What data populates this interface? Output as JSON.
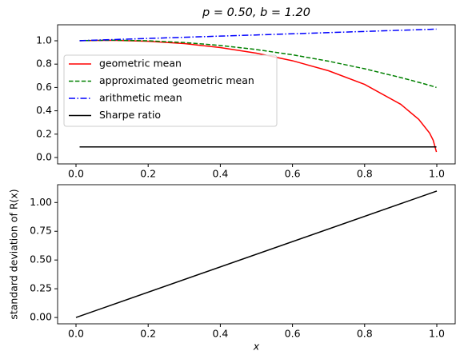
{
  "chart_data": [
    {
      "type": "line",
      "title": "p = 0.50, b = 1.20",
      "legend": "upper left",
      "x": [
        0.01,
        0.1,
        0.2,
        0.3,
        0.4,
        0.5,
        0.6,
        0.7,
        0.8,
        0.9,
        0.95,
        0.98,
        0.99,
        0.999
      ],
      "series": [
        {
          "name": "geometric mean",
          "color": "#ff0000",
          "linestyle": "solid",
          "values": [
            1.0009,
            1.004,
            0.996,
            0.976,
            0.942,
            0.894,
            0.829,
            0.743,
            0.626,
            0.456,
            0.327,
            0.209,
            0.148,
            0.047
          ]
        },
        {
          "name": "approximated geometric mean",
          "color": "#008000",
          "linestyle": "dashed",
          "values": [
            1.001,
            1.005,
            1.0,
            0.985,
            0.96,
            0.925,
            0.88,
            0.825,
            0.76,
            0.685,
            0.644,
            0.618,
            0.609,
            0.6
          ]
        },
        {
          "name": "arithmetic mean",
          "color": "#0000ff",
          "linestyle": "dashdot",
          "values": [
            1.001,
            1.01,
            1.02,
            1.03,
            1.04,
            1.05,
            1.06,
            1.07,
            1.08,
            1.09,
            1.095,
            1.098,
            1.099,
            1.0999
          ]
        },
        {
          "name": "Sharpe ratio",
          "color": "#000000",
          "linestyle": "solid",
          "values": [
            0.0909,
            0.0909,
            0.0909,
            0.0909,
            0.0909,
            0.0909,
            0.0909,
            0.0909,
            0.0909,
            0.0909,
            0.0909,
            0.0909,
            0.0909,
            0.0909
          ]
        }
      ],
      "xlim": [
        -0.051,
        1.051
      ],
      "ylim": [
        -0.055,
        1.137
      ],
      "xticks": [
        {
          "value": 0,
          "label": "0.0"
        },
        {
          "value": 0.2,
          "label": "0.2"
        },
        {
          "value": 0.4,
          "label": "0.4"
        },
        {
          "value": 0.6,
          "label": "0.6"
        },
        {
          "value": 0.8,
          "label": "0.8"
        },
        {
          "value": 1,
          "label": "1.0"
        }
      ],
      "yticks": [
        {
          "value": 0,
          "label": "0.0"
        },
        {
          "value": 0.2,
          "label": "0.2"
        },
        {
          "value": 0.4,
          "label": "0.4"
        },
        {
          "value": 0.6,
          "label": "0.6"
        },
        {
          "value": 0.8,
          "label": "0.8"
        },
        {
          "value": 1,
          "label": "1.0"
        }
      ]
    },
    {
      "type": "line",
      "x_label": "x",
      "y_label": "standard deviation of R(x)",
      "x": [
        0,
        1
      ],
      "series": [
        {
          "color": "#000000",
          "linestyle": "solid",
          "values": [
            0,
            1.1
          ]
        }
      ],
      "xlim": [
        -0.051,
        1.051
      ],
      "ylim": [
        -0.055,
        1.155
      ],
      "xticks": [
        {
          "value": 0,
          "label": "0.0"
        },
        {
          "value": 0.2,
          "label": "0.2"
        },
        {
          "value": 0.4,
          "label": "0.4"
        },
        {
          "value": 0.6,
          "label": "0.6"
        },
        {
          "value": 0.8,
          "label": "0.8"
        },
        {
          "value": 1,
          "label": "1.0"
        }
      ],
      "yticks": [
        {
          "value": 0,
          "label": "0.00"
        },
        {
          "value": 0.25,
          "label": "0.25"
        },
        {
          "value": 0.5,
          "label": "0.50"
        },
        {
          "value": 0.75,
          "label": "0.75"
        },
        {
          "value": 1,
          "label": "1.00"
        }
      ]
    }
  ]
}
